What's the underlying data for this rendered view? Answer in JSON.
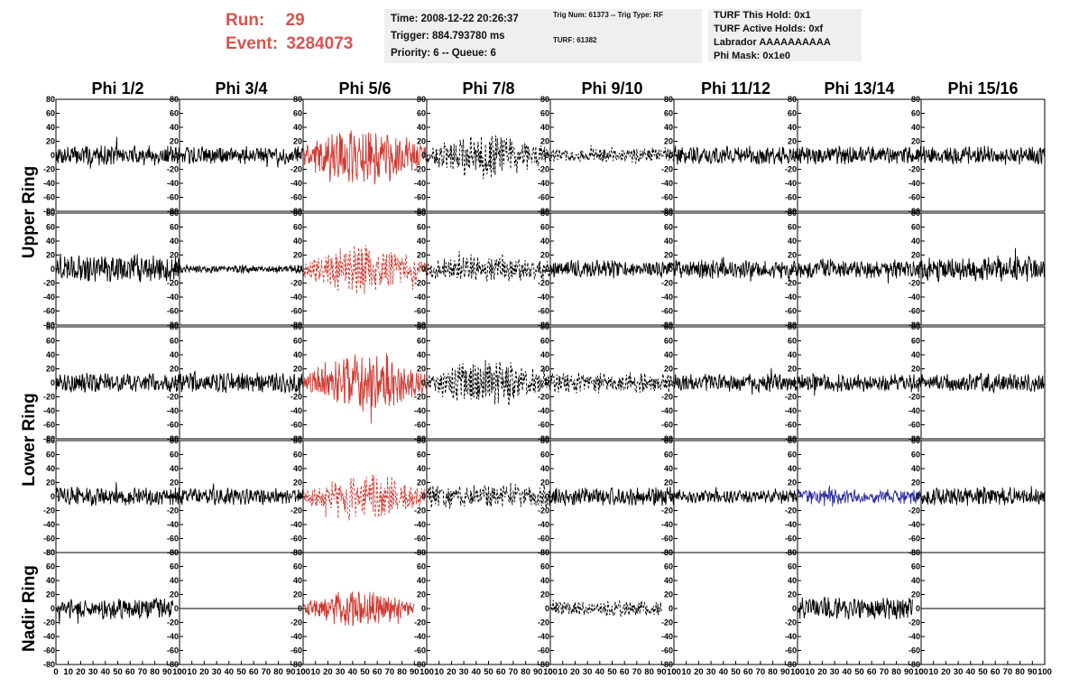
{
  "header": {
    "run_label": "Run:",
    "run_value": "29",
    "event_label": "Event:",
    "event_value": "3284073",
    "time": "Time: 2008-12-22 20:26:37",
    "trigger": "Trigger: 884.793780 ms",
    "priority": "Priority: 6 -- Queue: 6",
    "trig_num": "Trig Num: 61373 -- Trig Type: RF",
    "turf": "TURF: 61382",
    "turf_this_hold": "TURF This Hold: 0x1",
    "turf_active_holds": "TURF Active Holds: 0xf",
    "labrador": "Labrador AAAAAAAAAA",
    "phi_mask": "Phi Mask: 0x1e0"
  },
  "chart_data": {
    "type": "line",
    "columns": [
      "Phi 1/2",
      "Phi 3/4",
      "Phi 5/6",
      "Phi 7/8",
      "Phi 9/10",
      "Phi 11/12",
      "Phi 13/14",
      "Phi 15/16"
    ],
    "rings": [
      "Upper Ring",
      "Lower Ring",
      "Nadir Ring"
    ],
    "xlim": [
      0,
      100
    ],
    "ylim": [
      -80,
      80
    ],
    "x_ticks": [
      0,
      10,
      20,
      30,
      40,
      50,
      60,
      70,
      80,
      90,
      100
    ],
    "x_tick_labels": [
      "0",
      "10",
      "20",
      "30",
      "40",
      "50",
      "60",
      "70",
      "80",
      "90",
      "100"
    ],
    "y_ticks": [
      -80,
      -60,
      -40,
      -20,
      0,
      20,
      40,
      60,
      80
    ],
    "y_tick_labels": [
      "-80",
      "-60",
      "-40",
      "-20",
      "0",
      "20",
      "40",
      "60",
      "80"
    ],
    "colors": {
      "normal": "#000000",
      "triggered": "#d03a32",
      "blue": "#2c2ca0"
    },
    "panels": [
      {
        "row": 0,
        "col": 0,
        "amp": 12,
        "color": "normal",
        "dash": false,
        "envelope": "flat"
      },
      {
        "row": 0,
        "col": 1,
        "amp": 11,
        "color": "normal",
        "dash": false,
        "envelope": "flat"
      },
      {
        "row": 0,
        "col": 2,
        "amp": 30,
        "color": "triggered",
        "dash": false,
        "envelope": "bump"
      },
      {
        "row": 0,
        "col": 3,
        "amp": 24,
        "color": "normal",
        "dash": true,
        "envelope": "bump"
      },
      {
        "row": 0,
        "col": 4,
        "amp": 9,
        "color": "normal",
        "dash": true,
        "envelope": "flat"
      },
      {
        "row": 0,
        "col": 5,
        "amp": 11,
        "color": "normal",
        "dash": false,
        "envelope": "flat"
      },
      {
        "row": 0,
        "col": 6,
        "amp": 11,
        "color": "normal",
        "dash": false,
        "envelope": "flat"
      },
      {
        "row": 0,
        "col": 7,
        "amp": 11,
        "color": "normal",
        "dash": false,
        "envelope": "flat"
      },
      {
        "row": 1,
        "col": 0,
        "amp": 16,
        "color": "normal",
        "dash": false,
        "envelope": "flat"
      },
      {
        "row": 1,
        "col": 1,
        "amp": 5,
        "color": "normal",
        "dash": false,
        "envelope": "flat"
      },
      {
        "row": 1,
        "col": 2,
        "amp": 26,
        "color": "triggered",
        "dash": true,
        "envelope": "bump"
      },
      {
        "row": 1,
        "col": 3,
        "amp": 14,
        "color": "normal",
        "dash": true,
        "envelope": "flat"
      },
      {
        "row": 1,
        "col": 4,
        "amp": 11,
        "color": "normal",
        "dash": false,
        "envelope": "flat"
      },
      {
        "row": 1,
        "col": 5,
        "amp": 11,
        "color": "normal",
        "dash": false,
        "envelope": "flat"
      },
      {
        "row": 1,
        "col": 6,
        "amp": 11,
        "color": "normal",
        "dash": false,
        "envelope": "flat"
      },
      {
        "row": 1,
        "col": 7,
        "amp": 15,
        "color": "normal",
        "dash": false,
        "envelope": "flat"
      },
      {
        "row": 2,
        "col": 0,
        "amp": 12,
        "color": "normal",
        "dash": false,
        "envelope": "flat"
      },
      {
        "row": 2,
        "col": 1,
        "amp": 12,
        "color": "normal",
        "dash": false,
        "envelope": "flat"
      },
      {
        "row": 2,
        "col": 2,
        "amp": 30,
        "color": "triggered",
        "dash": false,
        "envelope": "bump"
      },
      {
        "row": 2,
        "col": 3,
        "amp": 24,
        "color": "normal",
        "dash": true,
        "envelope": "bump"
      },
      {
        "row": 2,
        "col": 4,
        "amp": 12,
        "color": "normal",
        "dash": true,
        "envelope": "flat"
      },
      {
        "row": 2,
        "col": 5,
        "amp": 11,
        "color": "normal",
        "dash": false,
        "envelope": "flat"
      },
      {
        "row": 2,
        "col": 6,
        "amp": 11,
        "color": "normal",
        "dash": false,
        "envelope": "flat"
      },
      {
        "row": 2,
        "col": 7,
        "amp": 11,
        "color": "normal",
        "dash": false,
        "envelope": "flat"
      },
      {
        "row": 3,
        "col": 0,
        "amp": 11,
        "color": "normal",
        "dash": false,
        "envelope": "flat"
      },
      {
        "row": 3,
        "col": 1,
        "amp": 10,
        "color": "normal",
        "dash": false,
        "envelope": "flat"
      },
      {
        "row": 3,
        "col": 2,
        "amp": 26,
        "color": "triggered",
        "dash": true,
        "envelope": "bump"
      },
      {
        "row": 3,
        "col": 3,
        "amp": 14,
        "color": "normal",
        "dash": true,
        "envelope": "flat"
      },
      {
        "row": 3,
        "col": 4,
        "amp": 11,
        "color": "normal",
        "dash": false,
        "envelope": "flat"
      },
      {
        "row": 3,
        "col": 5,
        "amp": 8,
        "color": "normal",
        "dash": false,
        "envelope": "flat"
      },
      {
        "row": 3,
        "col": 6,
        "amp": 9,
        "color": "blue",
        "dash": false,
        "envelope": "flat"
      },
      {
        "row": 3,
        "col": 7,
        "amp": 11,
        "color": "normal",
        "dash": false,
        "envelope": "flat"
      },
      {
        "row": 4,
        "col": 0,
        "amp": 13,
        "color": "normal",
        "dash": false,
        "envelope": "flat",
        "extent": [
          0,
          95
        ]
      },
      {
        "row": 4,
        "col": 1,
        "amp": 0,
        "color": "normal",
        "dash": false,
        "envelope": "flat"
      },
      {
        "row": 4,
        "col": 2,
        "amp": 18,
        "color": "triggered",
        "dash": false,
        "envelope": "bump",
        "extent": [
          0,
          90
        ]
      },
      {
        "row": 4,
        "col": 3,
        "amp": null
      },
      {
        "row": 4,
        "col": 4,
        "amp": 9,
        "color": "normal",
        "dash": true,
        "envelope": "flat",
        "extent": [
          0,
          90
        ]
      },
      {
        "row": 4,
        "col": 5,
        "amp": null
      },
      {
        "row": 4,
        "col": 6,
        "amp": 13,
        "color": "normal",
        "dash": false,
        "envelope": "flat",
        "extent": [
          0,
          93
        ]
      },
      {
        "row": 4,
        "col": 7,
        "amp": 0,
        "color": "normal",
        "dash": false,
        "envelope": "flat"
      }
    ]
  }
}
